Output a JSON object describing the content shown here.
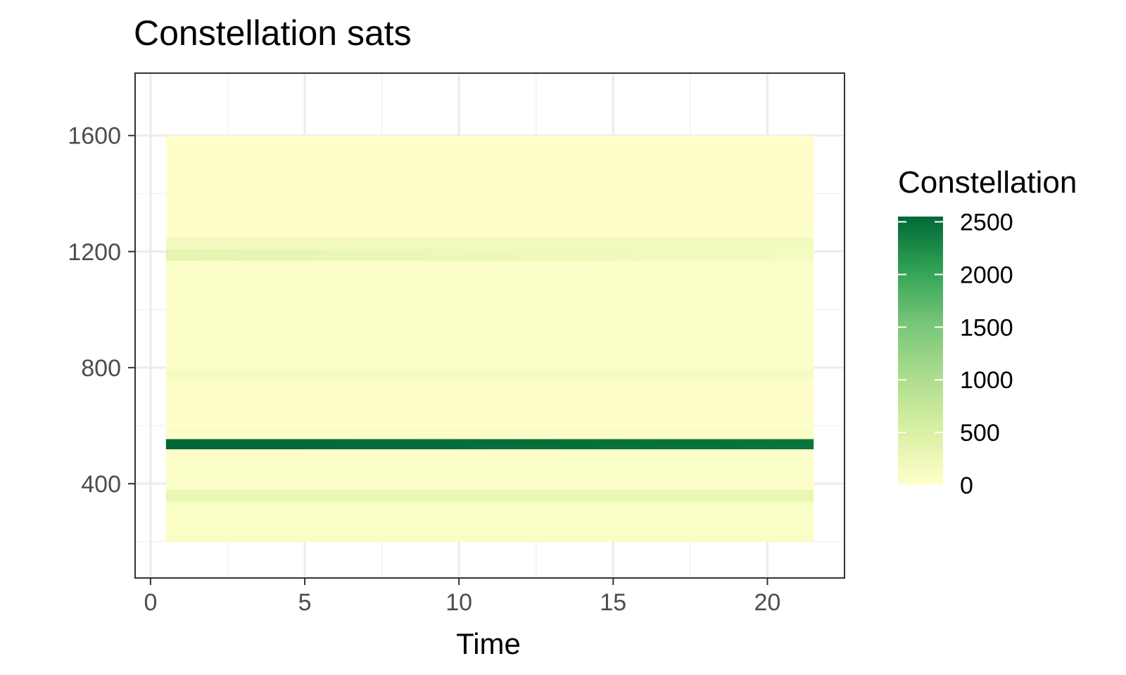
{
  "chart_data": {
    "type": "heatmap",
    "title": "Constellation sats",
    "xlabel": "Time",
    "ylabel": "",
    "xlim": [
      -0.5,
      22.5
    ],
    "ylim": [
      75,
      1815
    ],
    "x_ticks": [
      0,
      5,
      10,
      15,
      20
    ],
    "y_ticks": [
      400,
      800,
      1200,
      1600
    ],
    "grid": true,
    "x_range": [
      0.5,
      21.5
    ],
    "legend": {
      "title": "Constellation",
      "position": "right",
      "min": 0,
      "max": 2550,
      "breaks": [
        0,
        500,
        1000,
        1500,
        2000,
        2500
      ],
      "colors": [
        "#ffffcc",
        "#d9f0a3",
        "#addd8e",
        "#78c679",
        "#31a354",
        "#006837"
      ]
    },
    "bands": [
      {
        "y0": 200,
        "y1": 300,
        "values": [
          60,
          60
        ]
      },
      {
        "y0": 300,
        "y1": 340,
        "values": [
          80,
          80
        ]
      },
      {
        "y0": 340,
        "y1": 380,
        "values": [
          300,
          300
        ]
      },
      {
        "y0": 380,
        "y1": 520,
        "values": [
          50,
          50
        ]
      },
      {
        "y0": 520,
        "y1": 555,
        "values": [
          2550,
          2450
        ]
      },
      {
        "y0": 555,
        "y1": 590,
        "values": [
          60,
          60
        ]
      },
      {
        "y0": 590,
        "y1": 760,
        "values": [
          30,
          30
        ]
      },
      {
        "y0": 760,
        "y1": 795,
        "values": [
          130,
          130
        ]
      },
      {
        "y0": 795,
        "y1": 1170,
        "values": [
          40,
          40
        ]
      },
      {
        "y0": 1170,
        "y1": 1210,
        "values": [
          350,
          150
        ]
      },
      {
        "y0": 1210,
        "y1": 1250,
        "values": [
          170,
          170
        ]
      },
      {
        "y0": 1250,
        "y1": 1600,
        "values": [
          20,
          20
        ]
      }
    ]
  }
}
